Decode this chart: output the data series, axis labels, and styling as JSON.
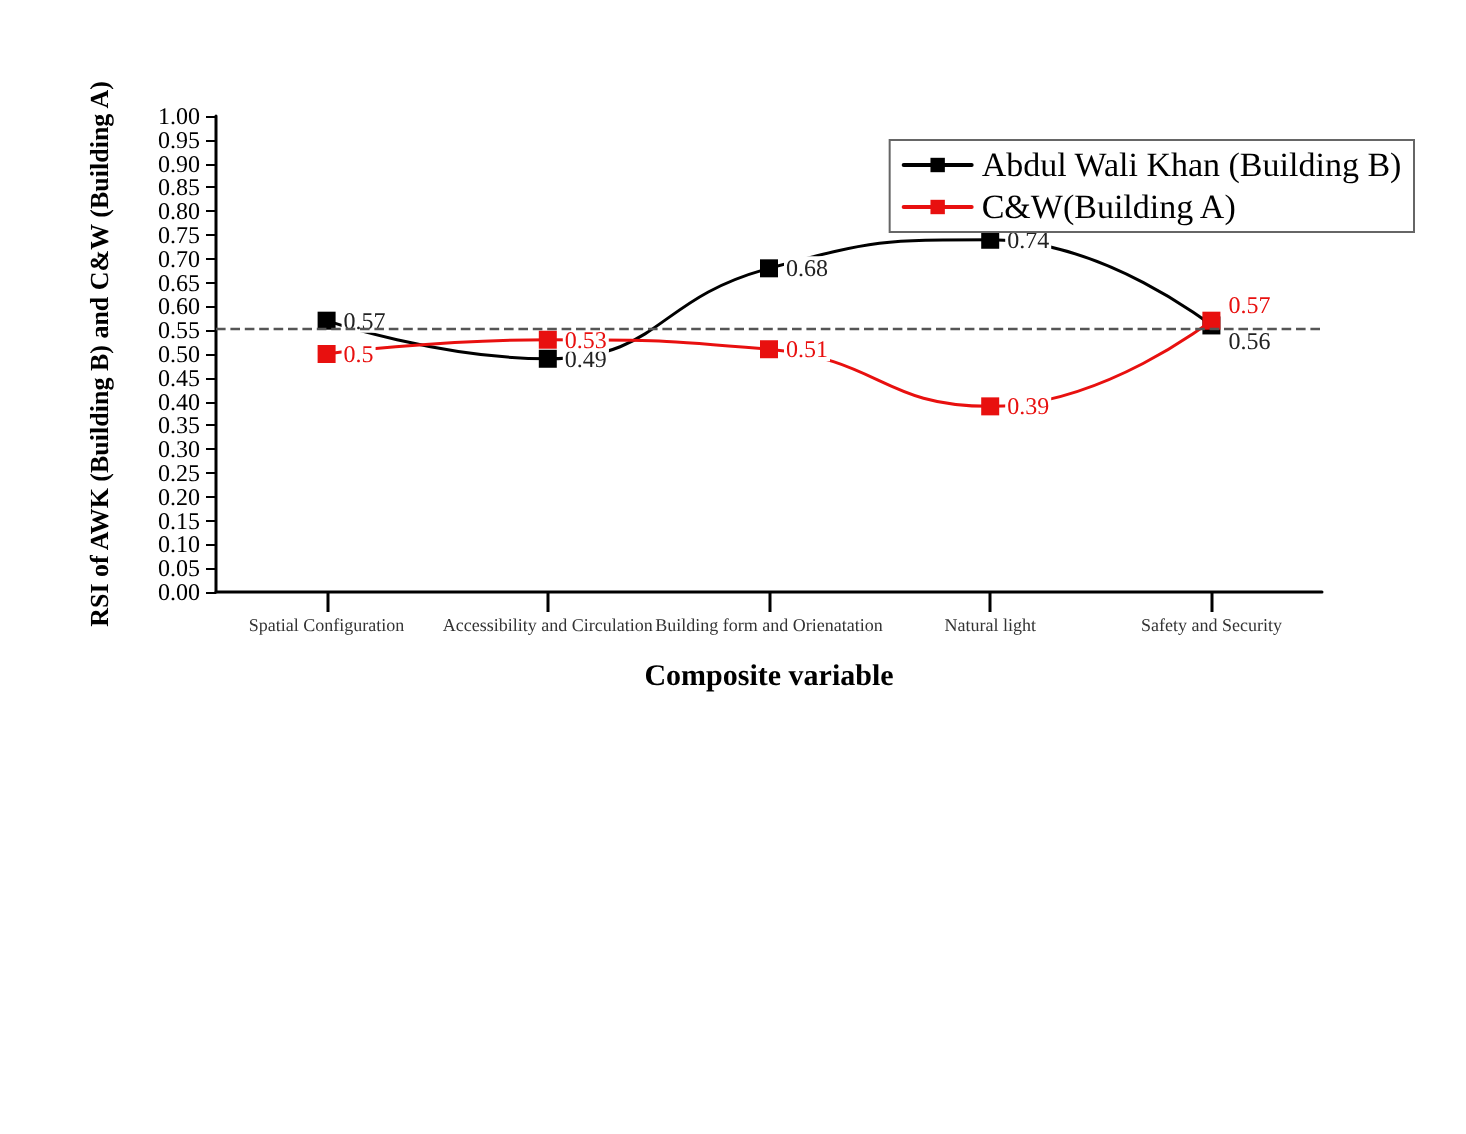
{
  "chart_data": {
    "type": "line",
    "xlabel": "Composite variable",
    "ylabel": "RSI of AWK (Building B) and C&W (Building A)",
    "categories": [
      "Spatial Configuration",
      "Accessibility and Circulation",
      "Building form and Orienatation",
      "Natural light",
      "Safety and Security"
    ],
    "series": [
      {
        "name": "Abdul Wali Khan (Building B)",
        "color": "#000000",
        "values": [
          0.57,
          0.49,
          0.68,
          0.74,
          0.56
        ]
      },
      {
        "name": "C&W(Building A)",
        "color": "#e8100f",
        "values": [
          0.5,
          0.53,
          0.51,
          0.39,
          0.57
        ]
      }
    ],
    "ylim": [
      0,
      1
    ],
    "yticks": [
      {
        "value": 0,
        "label": "0.00"
      },
      {
        "value": 0.05,
        "label": "0.05"
      },
      {
        "value": 0.1,
        "label": "0.10"
      },
      {
        "value": 0.15,
        "label": "0.15"
      },
      {
        "value": 0.2,
        "label": "0.20"
      },
      {
        "value": 0.25,
        "label": "0.25"
      },
      {
        "value": 0.3,
        "label": "0.30"
      },
      {
        "value": 0.35,
        "label": "0.35"
      },
      {
        "value": 0.4,
        "label": "0.40"
      },
      {
        "value": 0.45,
        "label": "0.45"
      },
      {
        "value": 0.5,
        "label": "0.50"
      },
      {
        "value": 0.55,
        "label": "0.55"
      },
      {
        "value": 0.6,
        "label": "0.60"
      },
      {
        "value": 0.65,
        "label": "0.65"
      },
      {
        "value": 0.7,
        "label": "0.70"
      },
      {
        "value": 0.75,
        "label": "0.75"
      },
      {
        "value": 0.8,
        "label": "0.80"
      },
      {
        "value": 0.85,
        "label": "0.85"
      },
      {
        "value": 0.9,
        "label": "0.90"
      },
      {
        "value": 0.95,
        "label": "0.95"
      },
      {
        "value": 1,
        "label": "1.00"
      }
    ],
    "ref_lines": [
      {
        "axis": "y",
        "value": 0.555,
        "color": "#555555",
        "line_style": "dashed"
      }
    ],
    "data_labels": true,
    "grid": false,
    "legend": "top right",
    "marker": "square",
    "line_style": "solid"
  }
}
